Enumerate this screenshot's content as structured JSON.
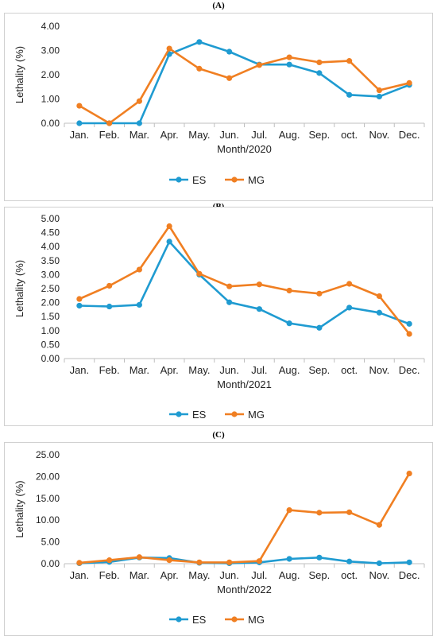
{
  "chart_data": [
    {
      "type": "line",
      "panel_label": "(A)",
      "categories": [
        "Jan.",
        "Feb.",
        "Mar.",
        "Apr.",
        "May.",
        "Jun.",
        "Jul.",
        "Aug.",
        "Sep.",
        "oct.",
        "Nov.",
        "Dec."
      ],
      "series": [
        {
          "name": "ES",
          "color": "#1f9bd1",
          "values": [
            0.0,
            0.0,
            0.0,
            2.85,
            3.35,
            2.95,
            2.42,
            2.42,
            2.07,
            1.17,
            1.1,
            1.58
          ]
        },
        {
          "name": "MG",
          "color": "#f07f22",
          "values": [
            0.72,
            0.0,
            0.91,
            3.08,
            2.25,
            1.86,
            2.4,
            2.72,
            2.51,
            2.57,
            1.36,
            1.66
          ]
        }
      ],
      "yticks": [
        "0.00",
        "1.00",
        "2.00",
        "3.00",
        "4.00"
      ],
      "ylim": [
        0,
        4
      ],
      "xlabel": "Month/2020",
      "ylabel": "Lethality (%)",
      "legend_position": "bottom",
      "grid": false
    },
    {
      "type": "line",
      "panel_label": "(B)",
      "categories": [
        "Jan.",
        "Feb.",
        "Mar.",
        "Apr.",
        "May.",
        "Jun.",
        "Jul.",
        "Aug.",
        "Sep.",
        "oct.",
        "Nov.",
        "Dec."
      ],
      "series": [
        {
          "name": "ES",
          "color": "#1f9bd1",
          "values": [
            1.89,
            1.86,
            1.92,
            4.18,
            3.0,
            2.01,
            1.77,
            1.26,
            1.1,
            1.82,
            1.64,
            1.24
          ]
        },
        {
          "name": "MG",
          "color": "#f07f22",
          "values": [
            2.13,
            2.6,
            3.18,
            4.73,
            3.03,
            2.58,
            2.65,
            2.43,
            2.32,
            2.67,
            2.23,
            0.88
          ]
        }
      ],
      "yticks": [
        "0.00",
        "0.50",
        "1.00",
        "1.50",
        "2.00",
        "2.50",
        "3.00",
        "3.50",
        "4.00",
        "4.50",
        "5.00"
      ],
      "ylim": [
        0,
        5
      ],
      "xlabel": "Month/2021",
      "ylabel": "Lethality (%)",
      "legend_position": "bottom",
      "grid": false
    },
    {
      "type": "line",
      "panel_label": "(C)",
      "categories": [
        "Jan.",
        "Feb.",
        "Mar.",
        "Apr.",
        "May.",
        "Jun.",
        "Jul.",
        "Aug.",
        "Sep.",
        "oct.",
        "Nov.",
        "Dec."
      ],
      "series": [
        {
          "name": "ES",
          "color": "#1f9bd1",
          "values": [
            0.1,
            0.4,
            1.4,
            1.3,
            0.2,
            0.1,
            0.3,
            1.1,
            1.4,
            0.5,
            0.1,
            0.3
          ]
        },
        {
          "name": "MG",
          "color": "#f07f22",
          "values": [
            0.2,
            0.8,
            1.5,
            0.8,
            0.3,
            0.3,
            0.6,
            12.3,
            11.7,
            11.8,
            8.9,
            20.7
          ]
        }
      ],
      "yticks": [
        "0.00",
        "5.00",
        "10.00",
        "15.00",
        "20.00",
        "25.00"
      ],
      "ylim": [
        0,
        25
      ],
      "xlabel": "Month/2022",
      "ylabel": "Lethality (%)",
      "legend_position": "bottom",
      "grid": false
    }
  ]
}
